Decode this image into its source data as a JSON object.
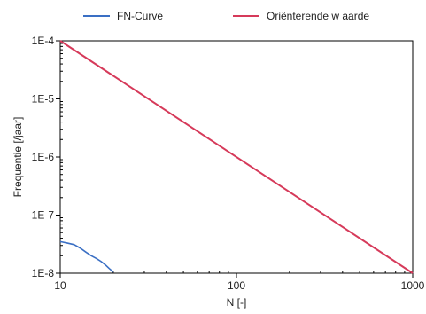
{
  "chart_data": {
    "type": "line",
    "xlabel": "N [-]",
    "ylabel": "Frequentie [/jaar]",
    "x_scale": "log",
    "y_scale": "log",
    "xlim": [
      10,
      1000
    ],
    "ylim": [
      1e-08,
      0.0001
    ],
    "x_ticks": [
      {
        "value": 10,
        "label": "10"
      },
      {
        "value": 100,
        "label": "100"
      },
      {
        "value": 1000,
        "label": "1000"
      }
    ],
    "y_ticks": [
      {
        "value": 0.0001,
        "label": "1E-4"
      },
      {
        "value": 1e-05,
        "label": "1E-5"
      },
      {
        "value": 1e-06,
        "label": "1E-6"
      },
      {
        "value": 1e-07,
        "label": "1E-7"
      },
      {
        "value": 1e-08,
        "label": "1E-8"
      }
    ],
    "legend_position": "top",
    "grid": false,
    "series": [
      {
        "name": "FN-Curve",
        "color": "#3a6fc4",
        "x": [
          10,
          11,
          12,
          13,
          14,
          15,
          16,
          17,
          18,
          19,
          20
        ],
        "y": [
          3.5e-08,
          3.3e-08,
          3.1e-08,
          2.7e-08,
          2.3e-08,
          2e-08,
          1.8e-08,
          1.6e-08,
          1.4e-08,
          1.2e-08,
          1.05e-08
        ]
      },
      {
        "name": "Oriënterende w aarde",
        "color": "#d63a5a",
        "x": [
          10,
          1000
        ],
        "y": [
          0.0001,
          1e-08
        ]
      }
    ]
  }
}
